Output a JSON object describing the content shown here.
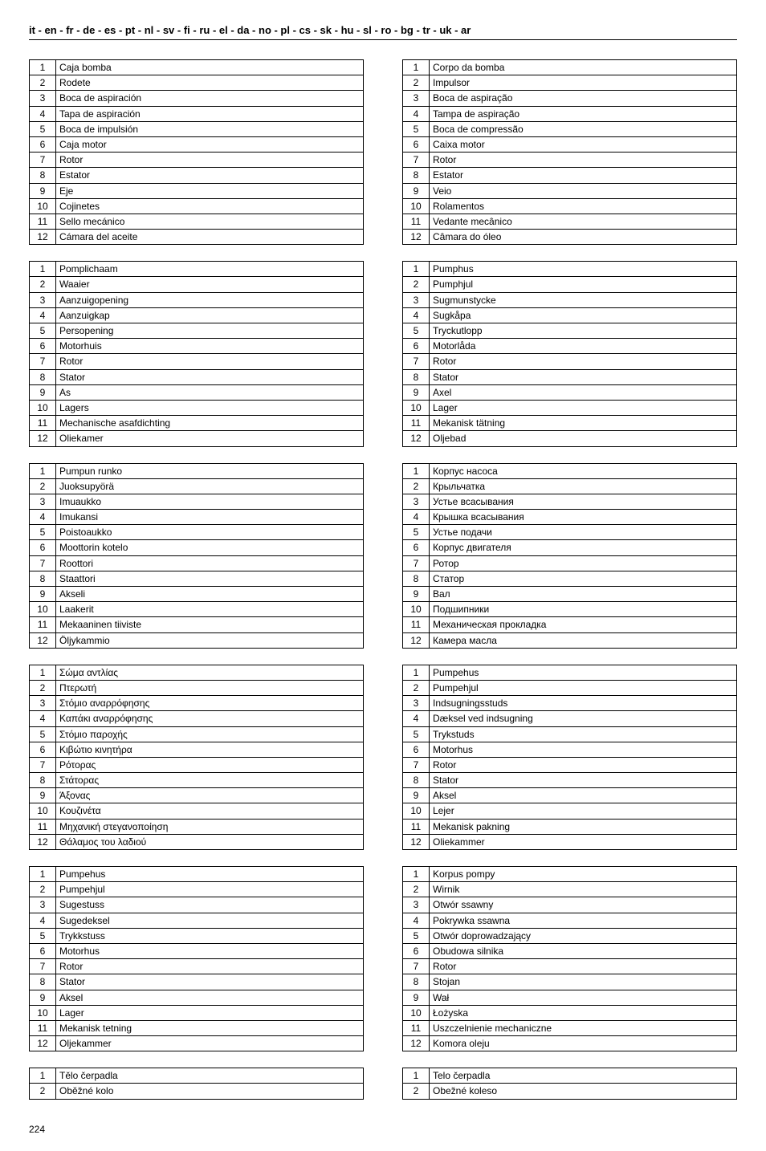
{
  "header": "it - en - fr - de - es - pt - nl - sv - fi - ru - el - da - no - pl - cs - sk - hu - sl - ro - bg - tr - uk - ar",
  "page_number": "224",
  "left_tables": [
    {
      "rows": [
        {
          "n": "1",
          "t": "Caja bomba"
        },
        {
          "n": "2",
          "t": "Rodete"
        },
        {
          "n": "3",
          "t": "Boca de aspiración"
        },
        {
          "n": "4",
          "t": "Tapa de aspiración"
        },
        {
          "n": "5",
          "t": "Boca de impulsión"
        },
        {
          "n": "6",
          "t": "Caja motor"
        },
        {
          "n": "7",
          "t": "Rotor"
        },
        {
          "n": "8",
          "t": "Estator"
        },
        {
          "n": "9",
          "t": "Eje"
        },
        {
          "n": "10",
          "t": "Cojinetes"
        },
        {
          "n": "11",
          "t": "Sello mecánico"
        },
        {
          "n": "12",
          "t": "Cámara del aceite"
        }
      ]
    },
    {
      "rows": [
        {
          "n": "1",
          "t": "Pomplichaam"
        },
        {
          "n": "2",
          "t": "Waaier"
        },
        {
          "n": "3",
          "t": "Aanzuigopening"
        },
        {
          "n": "4",
          "t": "Aanzuigkap"
        },
        {
          "n": "5",
          "t": "Persopening"
        },
        {
          "n": "6",
          "t": "Motorhuis"
        },
        {
          "n": "7",
          "t": "Rotor"
        },
        {
          "n": "8",
          "t": "Stator"
        },
        {
          "n": "9",
          "t": "As"
        },
        {
          "n": "10",
          "t": "Lagers"
        },
        {
          "n": "11",
          "t": "Mechanische asafdichting"
        },
        {
          "n": "12",
          "t": "Oliekamer"
        }
      ]
    },
    {
      "rows": [
        {
          "n": "1",
          "t": "Pumpun runko"
        },
        {
          "n": "2",
          "t": "Juoksupyörä"
        },
        {
          "n": "3",
          "t": "Imuaukko"
        },
        {
          "n": "4",
          "t": "Imukansi"
        },
        {
          "n": "5",
          "t": "Poistoaukko"
        },
        {
          "n": "6",
          "t": "Moottorin kotelo"
        },
        {
          "n": "7",
          "t": "Roottori"
        },
        {
          "n": "8",
          "t": "Staattori"
        },
        {
          "n": "9",
          "t": "Akseli"
        },
        {
          "n": "10",
          "t": "Laakerit"
        },
        {
          "n": "11",
          "t": "Mekaaninen tiiviste"
        },
        {
          "n": "12",
          "t": "Öljykammio"
        }
      ]
    },
    {
      "rows": [
        {
          "n": "1",
          "t": "Σώμα αντλίας"
        },
        {
          "n": "2",
          "t": "Πτερωτή"
        },
        {
          "n": "3",
          "t": "Στόμιο αναρρόφησης"
        },
        {
          "n": "4",
          "t": "Καπάκι αναρρόφησης"
        },
        {
          "n": "5",
          "t": "Στόμιο παροχής"
        },
        {
          "n": "6",
          "t": "Κιβώτιο κινητήρα"
        },
        {
          "n": "7",
          "t": "Ρότορας"
        },
        {
          "n": "8",
          "t": "Στάτορας"
        },
        {
          "n": "9",
          "t": "Άξονας"
        },
        {
          "n": "10",
          "t": "Κουζινέτα"
        },
        {
          "n": "11",
          "t": "Μηχανική στεγανοποίηση"
        },
        {
          "n": "12",
          "t": "Θάλαμος του λαδιού"
        }
      ]
    },
    {
      "rows": [
        {
          "n": "1",
          "t": "Pumpehus"
        },
        {
          "n": "2",
          "t": "Pumpehjul"
        },
        {
          "n": "3",
          "t": "Sugestuss"
        },
        {
          "n": "4",
          "t": "Sugedeksel"
        },
        {
          "n": "5",
          "t": "Trykkstuss"
        },
        {
          "n": "6",
          "t": "Motorhus"
        },
        {
          "n": "7",
          "t": "Rotor"
        },
        {
          "n": "8",
          "t": "Stator"
        },
        {
          "n": "9",
          "t": "Aksel"
        },
        {
          "n": "10",
          "t": "Lager"
        },
        {
          "n": "11",
          "t": "Mekanisk tetning"
        },
        {
          "n": "12",
          "t": "Oljekammer"
        }
      ]
    },
    {
      "rows": [
        {
          "n": "1",
          "t": "Tělo čerpadla"
        },
        {
          "n": "2",
          "t": "Oběžné kolo"
        }
      ]
    }
  ],
  "right_tables": [
    {
      "rows": [
        {
          "n": "1",
          "t": "Corpo da bomba"
        },
        {
          "n": "2",
          "t": "Impulsor"
        },
        {
          "n": "3",
          "t": "Boca de aspiração"
        },
        {
          "n": "4",
          "t": "Tampa de aspiração"
        },
        {
          "n": "5",
          "t": "Boca de compressão"
        },
        {
          "n": "6",
          "t": "Caixa motor"
        },
        {
          "n": "7",
          "t": "Rotor"
        },
        {
          "n": "8",
          "t": "Estator"
        },
        {
          "n": "9",
          "t": "Veio"
        },
        {
          "n": "10",
          "t": "Rolamentos"
        },
        {
          "n": "11",
          "t": "Vedante mecânico"
        },
        {
          "n": "12",
          "t": "Câmara do óleo"
        }
      ]
    },
    {
      "rows": [
        {
          "n": "1",
          "t": "Pumphus"
        },
        {
          "n": "2",
          "t": "Pumphjul"
        },
        {
          "n": "3",
          "t": "Sugmunstycke"
        },
        {
          "n": "4",
          "t": "Sugkåpa"
        },
        {
          "n": "5",
          "t": "Tryckutlopp"
        },
        {
          "n": "6",
          "t": "Motorlåda"
        },
        {
          "n": "7",
          "t": "Rotor"
        },
        {
          "n": "8",
          "t": "Stator"
        },
        {
          "n": "9",
          "t": "Axel"
        },
        {
          "n": "10",
          "t": "Lager"
        },
        {
          "n": "11",
          "t": "Mekanisk tätning"
        },
        {
          "n": "12",
          "t": "Oljebad"
        }
      ]
    },
    {
      "rows": [
        {
          "n": "1",
          "t": "Корпус насоса"
        },
        {
          "n": "2",
          "t": "Крыльчатка"
        },
        {
          "n": "3",
          "t": "Устье всасывания"
        },
        {
          "n": "4",
          "t": "Крышка всасывания"
        },
        {
          "n": "5",
          "t": "Устье подачи"
        },
        {
          "n": "6",
          "t": "Корпус двигателя"
        },
        {
          "n": "7",
          "t": "Ротор"
        },
        {
          "n": "8",
          "t": "Статор"
        },
        {
          "n": "9",
          "t": "Вал"
        },
        {
          "n": "10",
          "t": "Подшипники"
        },
        {
          "n": "11",
          "t": "Механическая прокладка"
        },
        {
          "n": "12",
          "t": "Камера масла"
        }
      ]
    },
    {
      "rows": [
        {
          "n": "1",
          "t": "Pumpehus"
        },
        {
          "n": "2",
          "t": "Pumpehjul"
        },
        {
          "n": "3",
          "t": "Indsugningsstuds"
        },
        {
          "n": "4",
          "t": "Dæksel ved indsugning"
        },
        {
          "n": "5",
          "t": "Trykstuds"
        },
        {
          "n": "6",
          "t": "Motorhus"
        },
        {
          "n": "7",
          "t": "Rotor"
        },
        {
          "n": "8",
          "t": "Stator"
        },
        {
          "n": "9",
          "t": "Aksel"
        },
        {
          "n": "10",
          "t": "Lejer"
        },
        {
          "n": "11",
          "t": "Mekanisk pakning"
        },
        {
          "n": "12",
          "t": "Oliekammer"
        }
      ]
    },
    {
      "rows": [
        {
          "n": "1",
          "t": "Korpus pompy"
        },
        {
          "n": "2",
          "t": "Wirnik"
        },
        {
          "n": "3",
          "t": "Otwór ssawny"
        },
        {
          "n": "4",
          "t": "Pokrywka ssawna"
        },
        {
          "n": "5",
          "t": "Otwór doprowadzający"
        },
        {
          "n": "6",
          "t": "Obudowa silnika"
        },
        {
          "n": "7",
          "t": "Rotor"
        },
        {
          "n": "8",
          "t": "Stojan"
        },
        {
          "n": "9",
          "t": "Wał"
        },
        {
          "n": "10",
          "t": "Łożyska"
        },
        {
          "n": "11",
          "t": "Uszczelnienie mechaniczne"
        },
        {
          "n": "12",
          "t": "Komora oleju"
        }
      ]
    },
    {
      "rows": [
        {
          "n": "1",
          "t": "Telo čerpadla"
        },
        {
          "n": "2",
          "t": "Obežné koleso"
        }
      ]
    }
  ]
}
